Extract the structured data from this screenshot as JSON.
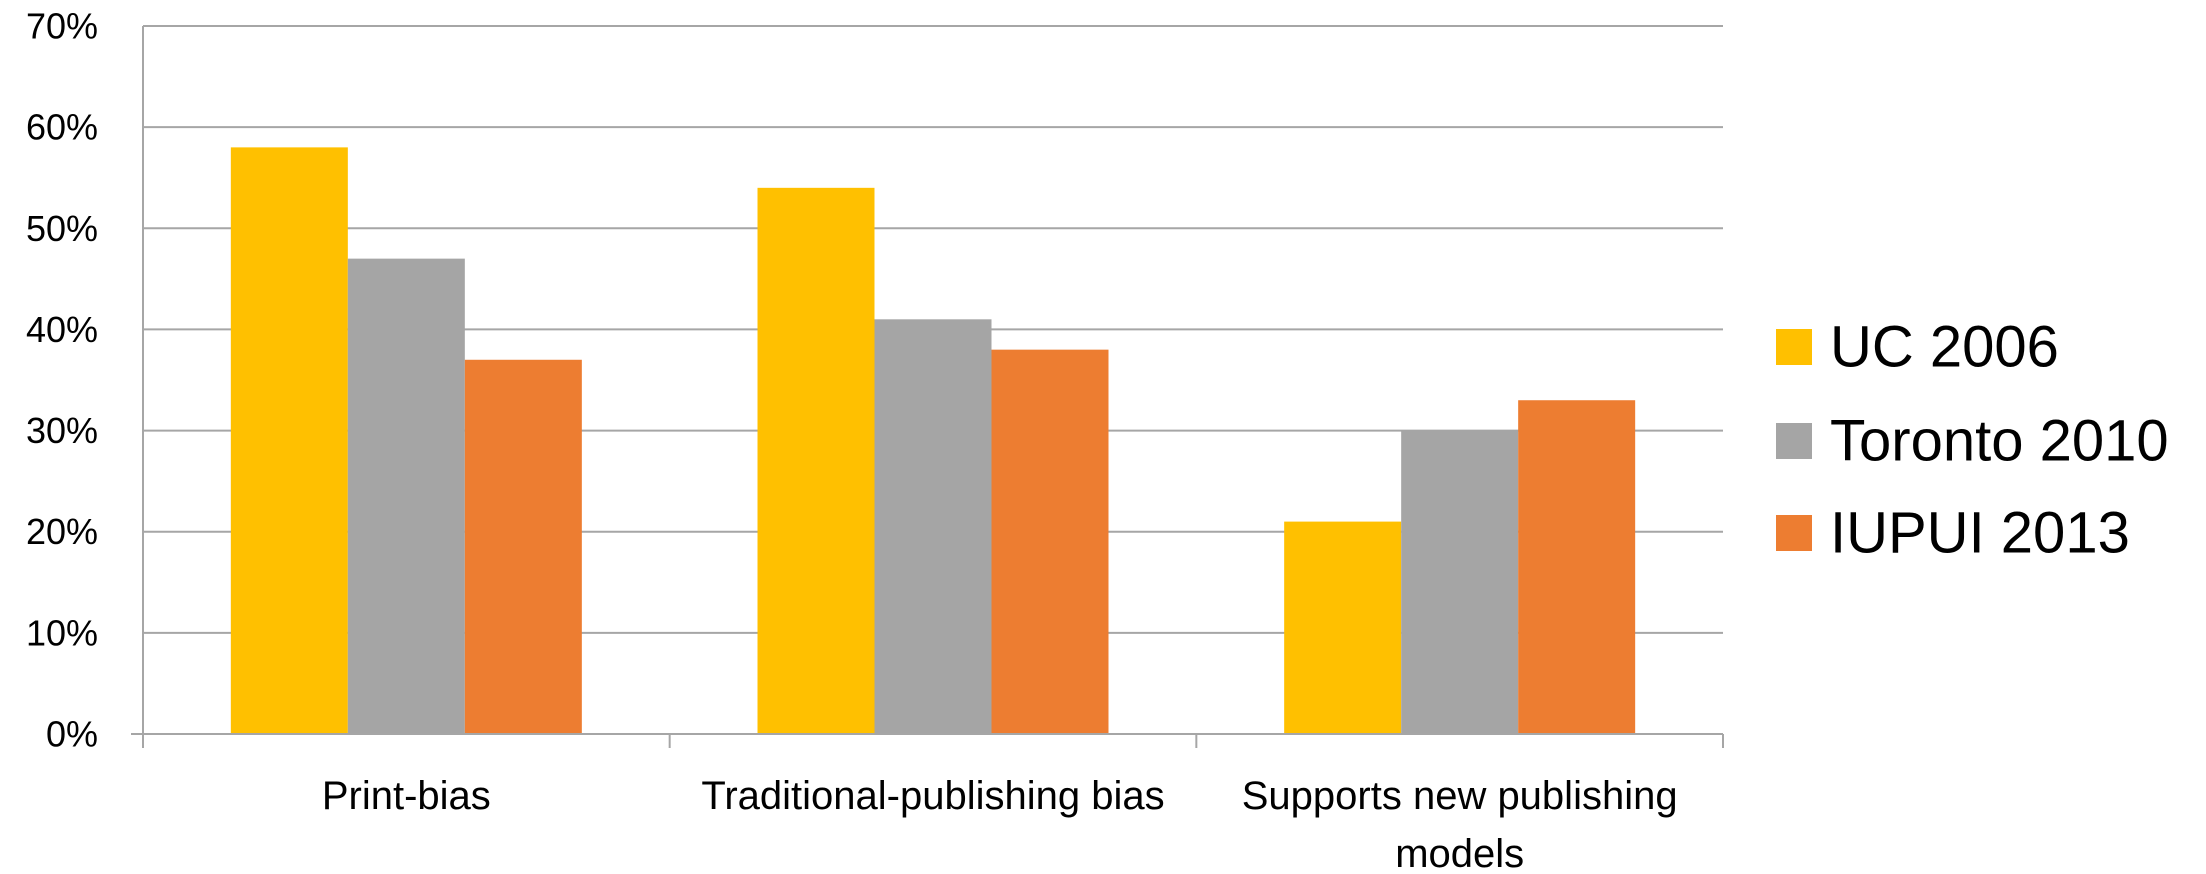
{
  "chart_data": {
    "type": "bar",
    "categories": [
      [
        "Print-bias"
      ],
      [
        "Traditional-publishing bias"
      ],
      [
        "Supports new publishing",
        "models"
      ]
    ],
    "series": [
      {
        "name": "UC 2006",
        "color": "#FFC000",
        "values": [
          58,
          54,
          21
        ]
      },
      {
        "name": "Toronto 2010",
        "color": "#A5A5A5",
        "values": [
          47,
          41,
          30
        ]
      },
      {
        "name": "IUPUI 2013",
        "color": "#ED7D31",
        "values": [
          37,
          38,
          33
        ]
      }
    ],
    "ylim": [
      0,
      70
    ],
    "yticks": [
      "0%",
      "10%",
      "20%",
      "30%",
      "40%",
      "50%",
      "60%",
      "70%"
    ],
    "grid": true,
    "legend": "right",
    "title": "",
    "xlabel": "",
    "ylabel": ""
  }
}
